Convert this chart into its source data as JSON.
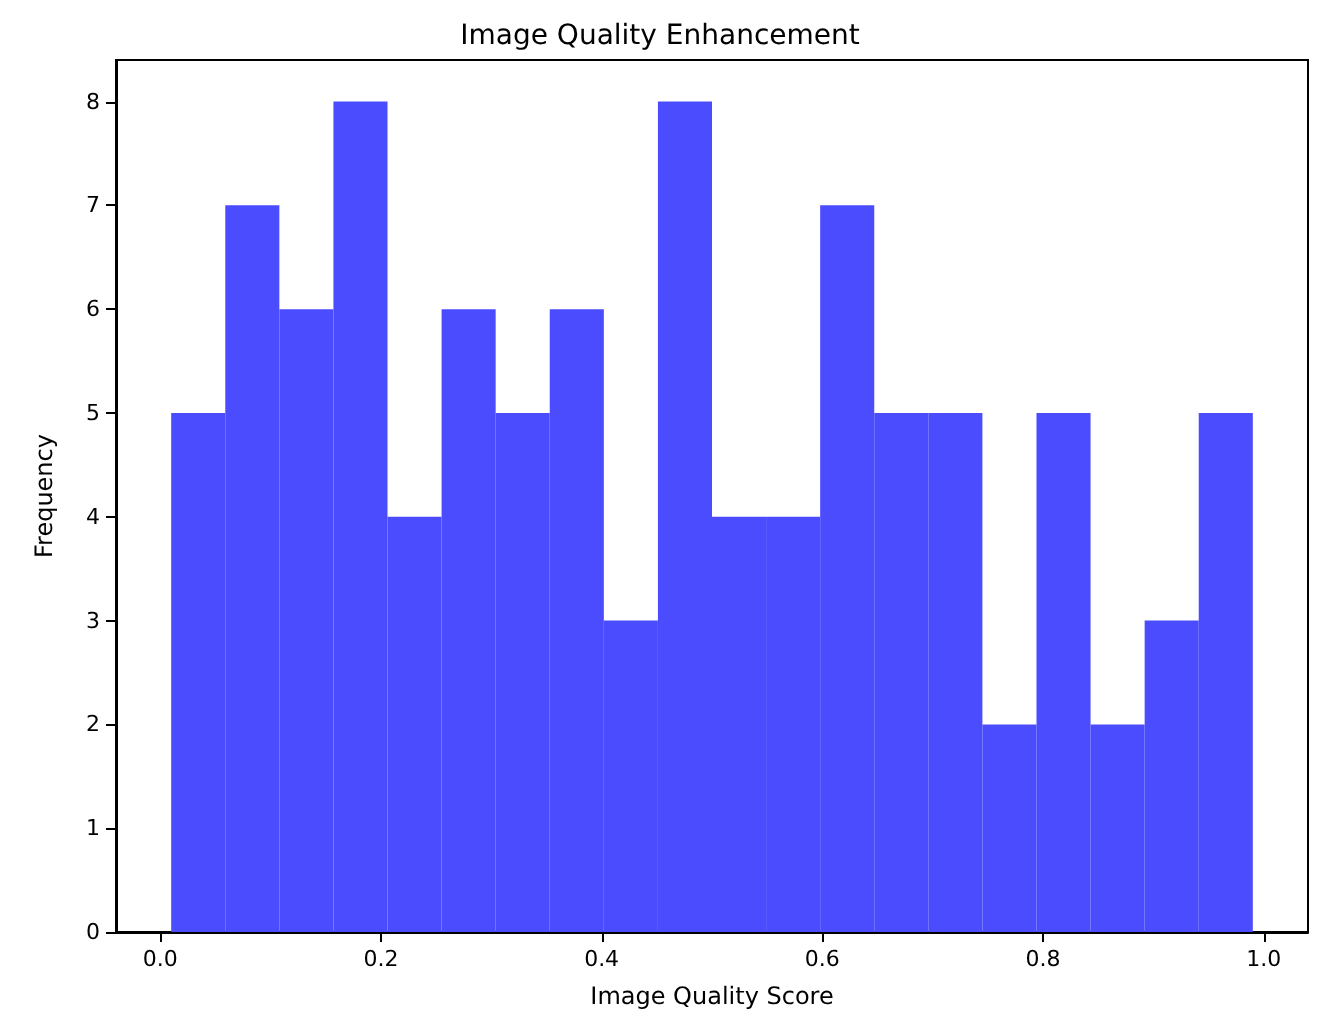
{
  "chart_data": {
    "type": "histogram",
    "title": "Image Quality Enhancement",
    "xlabel": "Image Quality Score",
    "ylabel": "Frequency",
    "bins": [
      0.01,
      0.059,
      0.108,
      0.157,
      0.206,
      0.255,
      0.304,
      0.353,
      0.402,
      0.451,
      0.5,
      0.549,
      0.598,
      0.647,
      0.696,
      0.745,
      0.794,
      0.843,
      0.892,
      0.941,
      0.99
    ],
    "values": [
      5,
      7,
      6,
      8,
      4,
      6,
      5,
      6,
      3,
      8,
      4,
      4,
      7,
      5,
      5,
      2,
      5,
      2,
      3,
      5
    ],
    "color": "#4c4cff",
    "xlim": [
      -0.04,
      1.04
    ],
    "ylim": [
      0,
      8.4
    ],
    "xticks": [
      {
        "value": 0,
        "label": "0.0"
      },
      {
        "value": 0.2,
        "label": "0.2"
      },
      {
        "value": 0.4,
        "label": "0.4"
      },
      {
        "value": 0.6,
        "label": "0.6"
      },
      {
        "value": 0.8,
        "label": "0.8"
      },
      {
        "value": 1,
        "label": "1.0"
      }
    ],
    "yticks": [
      0,
      1,
      2,
      3,
      4,
      5,
      6,
      7,
      8
    ],
    "grid": false
  }
}
